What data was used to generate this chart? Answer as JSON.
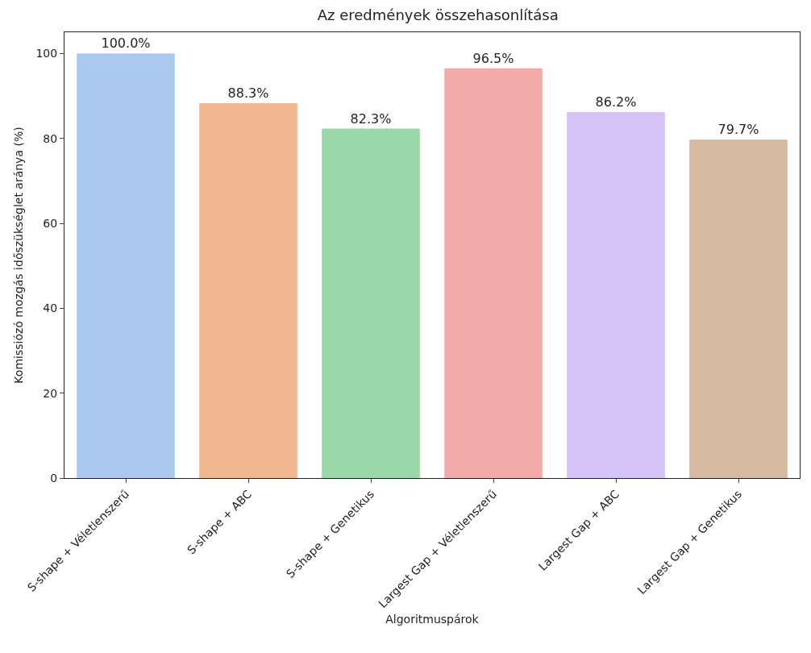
{
  "chart_data": {
    "type": "bar",
    "title": "Az eredmények összehasonlítása",
    "xlabel": "Algoritmuspárok",
    "ylabel": "Komissiózó mozgás időszükséglet aránya (%)",
    "categories": [
      "S-shape + Véletlenszerű",
      "S-shape + ABC",
      "S-shape + Genetikus",
      "Largest Gap + Véletlenszerű",
      "Largest Gap + ABC",
      "Largest Gap + Genetikus"
    ],
    "values": [
      100.0,
      88.3,
      82.3,
      96.5,
      86.2,
      79.7
    ],
    "value_labels": [
      "100.0%",
      "88.3%",
      "82.3%",
      "96.5%",
      "86.2%",
      "79.7%"
    ],
    "colors": [
      "#abc9ee",
      "#f0b690",
      "#98d8a8",
      "#f1aaa8",
      "#d5c3f6",
      "#d5b9a0"
    ],
    "ylim": [
      0,
      105
    ],
    "yticks": [
      0,
      20,
      40,
      60,
      80,
      100
    ],
    "grid": false,
    "legend": false
  }
}
